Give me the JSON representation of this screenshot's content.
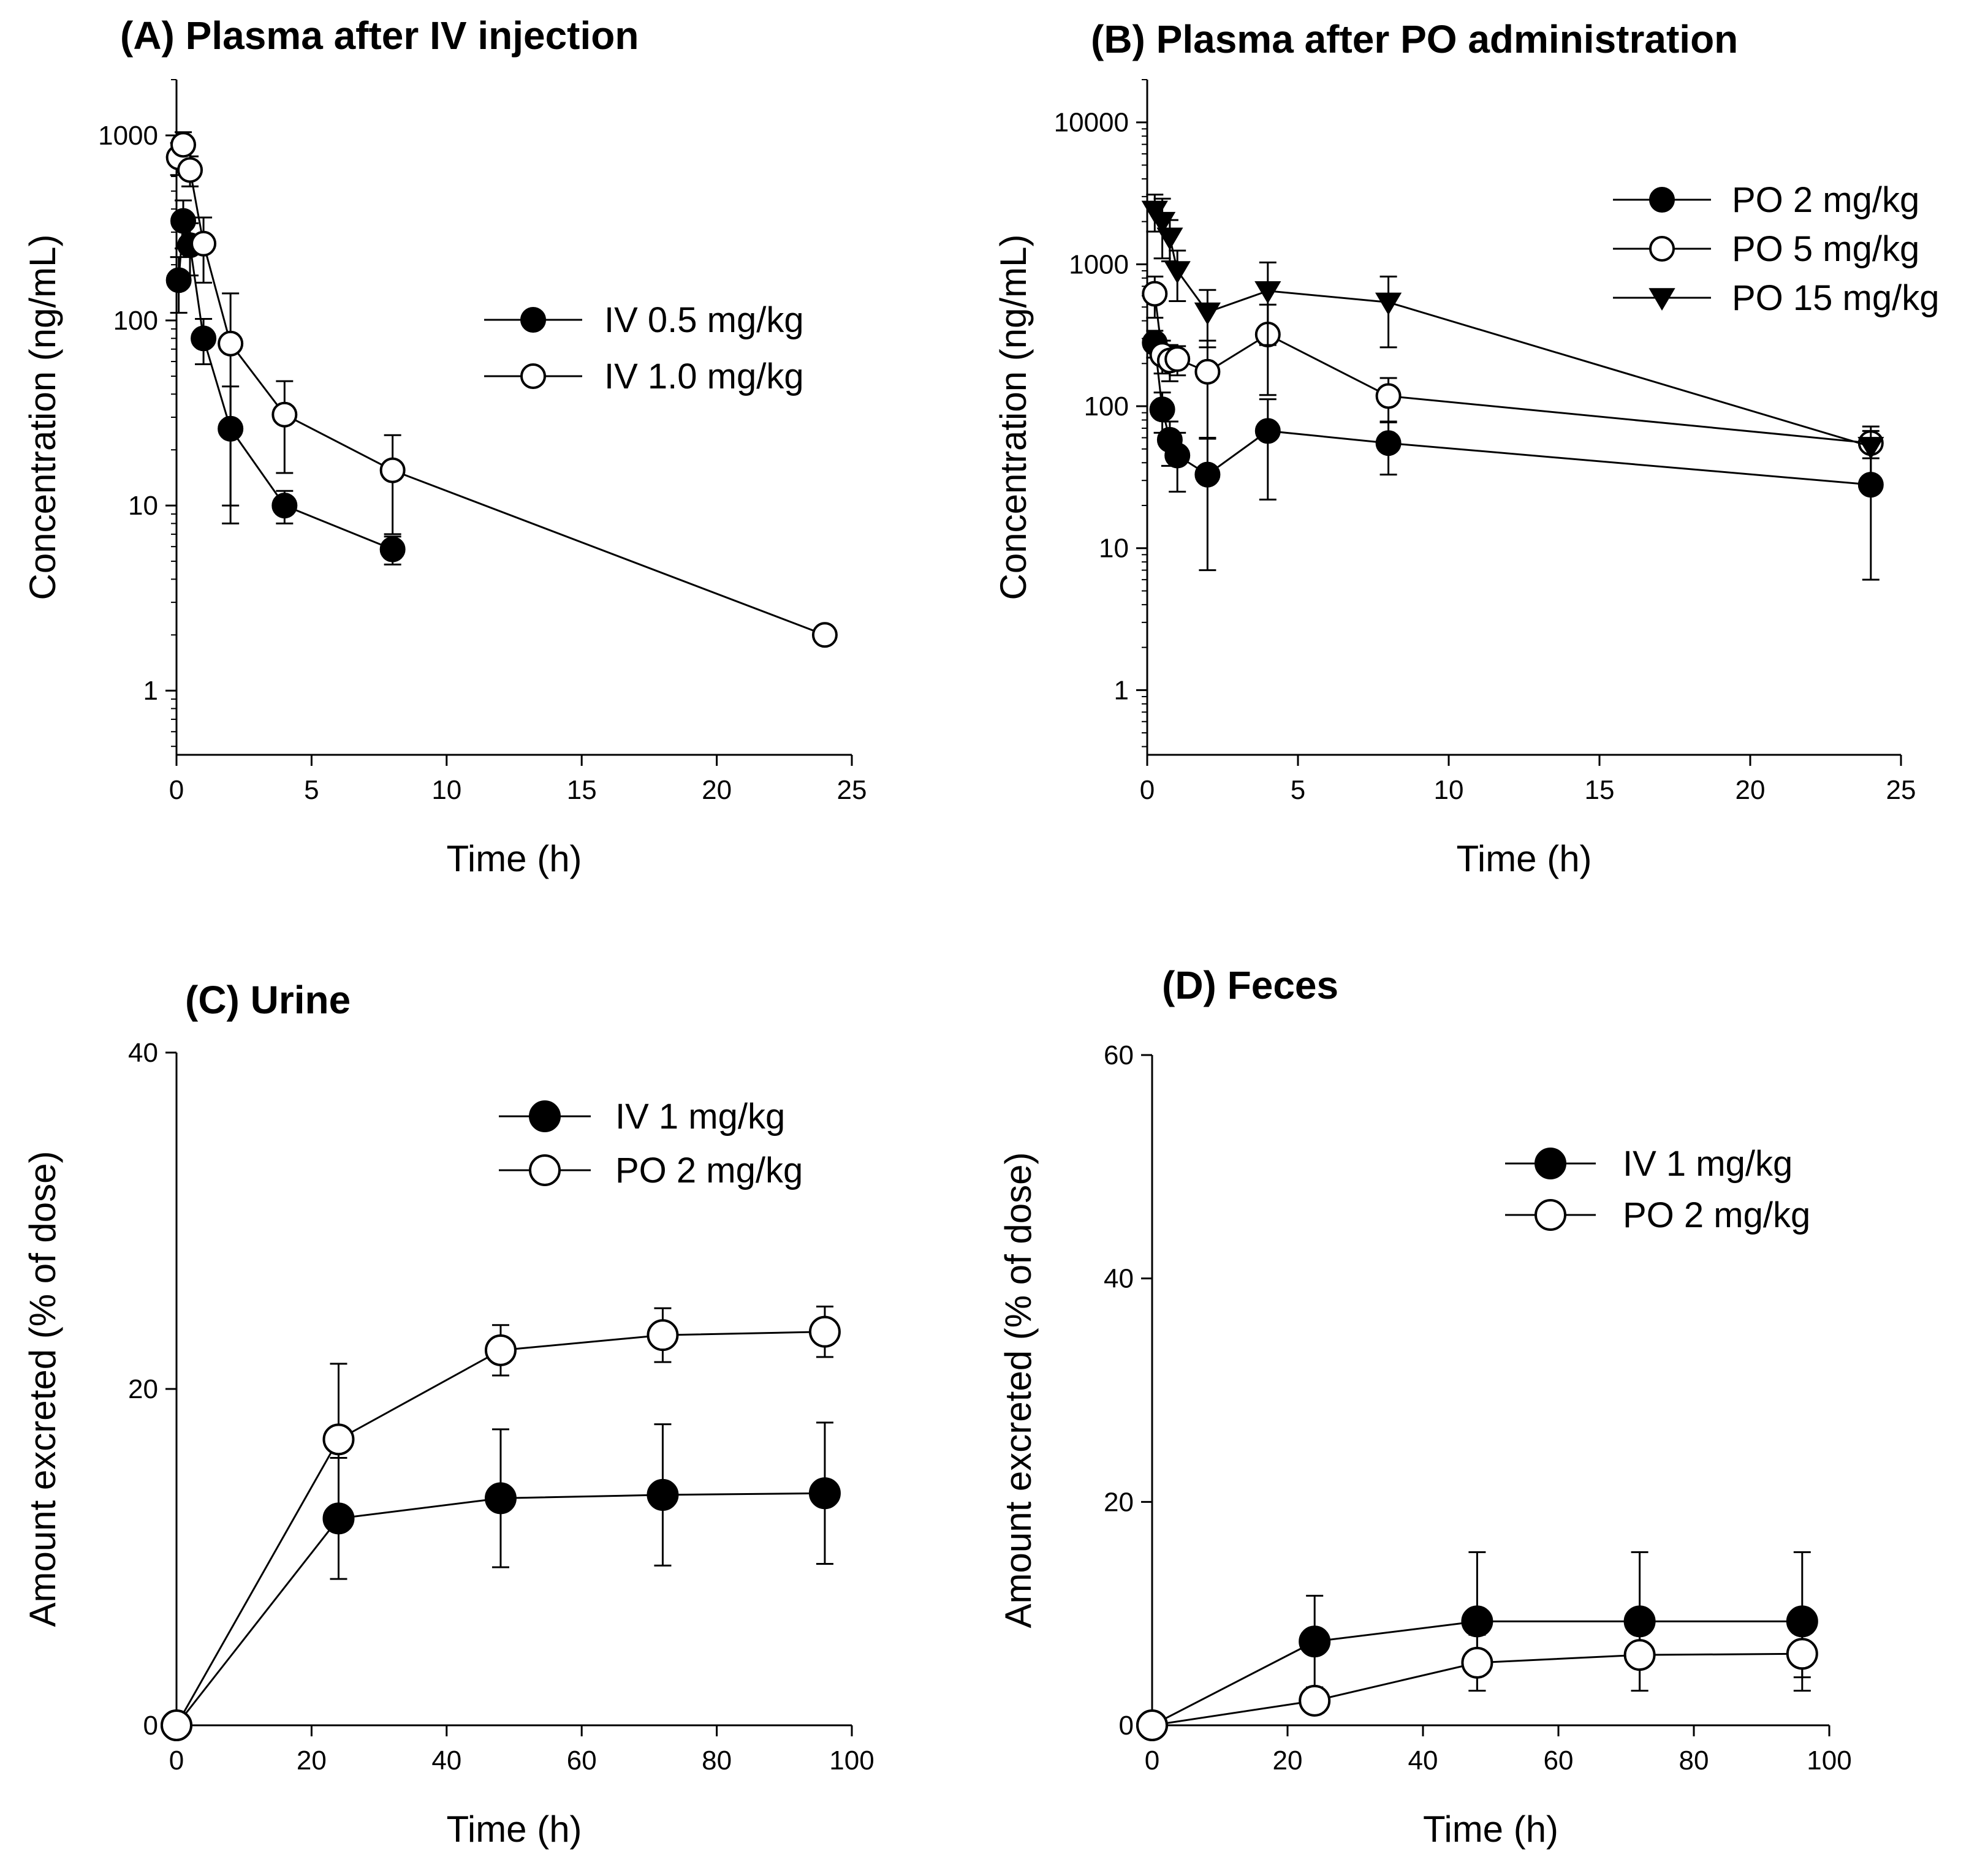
{
  "chart_data": [
    {
      "id": "A",
      "type": "scatter",
      "yscale": "log",
      "title": "(A) Plasma after IV injection",
      "xlabel": "Time (h)",
      "ylabel": "Concentration (ng/mL)",
      "xlim": [
        0,
        25
      ],
      "ylim": [
        0.45,
        2000
      ],
      "xticks": [
        0,
        5,
        10,
        15,
        20,
        25
      ],
      "yticks": [
        1,
        10,
        100,
        1000
      ],
      "xtick_labels": [
        "0",
        "5",
        "10",
        "15",
        "20",
        "25"
      ],
      "ytick_labels": [
        "1",
        "10",
        "100",
        "1000"
      ],
      "series": [
        {
          "name": "IV 0.5  mg/kg",
          "marker": "filled-circle",
          "x": [
            0.083,
            0.25,
            0.5,
            1,
            2,
            4,
            8
          ],
          "y": [
            165,
            345,
            255,
            80,
            26,
            10,
            5.8
          ],
          "err": [
            55,
            100,
            80,
            22,
            18,
            2,
            1
          ]
        },
        {
          "name": "IV 1.0 mg/kg",
          "marker": "open-circle",
          "x": [
            0.083,
            0.25,
            0.5,
            1,
            2,
            4,
            8,
            24
          ],
          "y": [
            760,
            890,
            650,
            260,
            75,
            31,
            15.5,
            2
          ],
          "err": [
            150,
            150,
            120,
            100,
            65,
            16,
            8.5,
            0
          ]
        }
      ]
    },
    {
      "id": "B",
      "type": "scatter",
      "yscale": "log",
      "title": "(B) Plasma after PO administration",
      "xlabel": "Time (h)",
      "ylabel": "Concentration (ng/mL)",
      "xlim": [
        0,
        25
      ],
      "ylim": [
        0.35,
        20000
      ],
      "xticks": [
        0,
        5,
        10,
        15,
        20,
        25
      ],
      "yticks": [
        1,
        10,
        100,
        1000,
        10000
      ],
      "xtick_labels": [
        "0",
        "5",
        "10",
        "15",
        "20",
        "25"
      ],
      "ytick_labels": [
        "1",
        "10",
        "100",
        "1000",
        "10000"
      ],
      "series": [
        {
          "name": "PO 2 mg/kg",
          "marker": "filled-circle",
          "x": [
            0.25,
            0.5,
            0.75,
            1,
            2,
            4,
            8,
            24
          ],
          "y": [
            280,
            95,
            58,
            45,
            33,
            67,
            55,
            28
          ],
          "err": [
            60,
            30,
            20,
            20,
            26,
            45,
            22,
            22
          ]
        },
        {
          "name": "PO 5 mg/kg",
          "marker": "open-circle",
          "x": [
            0.25,
            0.5,
            0.75,
            1,
            2,
            4,
            8,
            24
          ],
          "y": [
            620,
            230,
            210,
            215,
            175,
            320,
            118,
            55
          ],
          "err": [
            200,
            60,
            60,
            50,
            115,
            200,
            40,
            12
          ]
        },
        {
          "name": "PO 15 mg/kg",
          "marker": "filled-triangle-down",
          "x": [
            0.25,
            0.5,
            0.75,
            1,
            2,
            4,
            8,
            24
          ],
          "y": [
            2400,
            2000,
            1550,
            900,
            460,
            650,
            540,
            52
          ],
          "err": [
            700,
            900,
            500,
            350,
            200,
            380,
            280,
            20
          ]
        }
      ]
    },
    {
      "id": "C",
      "type": "line",
      "title": "(C) Urine",
      "xlabel": "Time (h)",
      "ylabel": "Amount excreted (% of dose)",
      "xlim": [
        0,
        100
      ],
      "ylim": [
        0,
        40
      ],
      "xticks": [
        0,
        20,
        40,
        60,
        80,
        100
      ],
      "yticks": [
        0,
        20,
        40
      ],
      "xtick_labels": [
        "0",
        "20",
        "40",
        "60",
        "80",
        "100"
      ],
      "ytick_labels": [
        "0",
        "20",
        "40"
      ],
      "series": [
        {
          "name": "IV 1 mg/kg",
          "marker": "filled-circle",
          "x": [
            0,
            24,
            48,
            72,
            96
          ],
          "y": [
            0,
            12.3,
            13.5,
            13.7,
            13.8
          ],
          "err": [
            0,
            3.6,
            4.1,
            4.2,
            4.2
          ]
        },
        {
          "name": "PO 2 mg/kg",
          "marker": "open-circle",
          "x": [
            0,
            24,
            48,
            72,
            96
          ],
          "y": [
            0,
            17,
            22.3,
            23.2,
            23.4
          ],
          "err": [
            0,
            4.5,
            1.5,
            1.6,
            1.5
          ]
        }
      ]
    },
    {
      "id": "D",
      "type": "line",
      "title": "(D) Feces",
      "xlabel": "Time (h)",
      "ylabel": "Amount excreted (% of dose)",
      "xlim": [
        0,
        100
      ],
      "ylim": [
        0,
        60
      ],
      "xticks": [
        0,
        20,
        40,
        60,
        80,
        100
      ],
      "yticks": [
        0,
        20,
        40,
        60
      ],
      "xtick_labels": [
        "0",
        "20",
        "40",
        "60",
        "80",
        "100"
      ],
      "ytick_labels": [
        "0",
        "20",
        "40",
        "60"
      ],
      "series": [
        {
          "name": "IV 1 mg/kg",
          "marker": "filled-circle",
          "x": [
            0,
            24,
            48,
            72,
            96
          ],
          "y": [
            0,
            7.5,
            9.3,
            9.3,
            9.3
          ],
          "err": [
            0,
            4.1,
            6.2,
            6.2,
            6.2
          ]
        },
        {
          "name": "PO 2 mg/kg",
          "marker": "open-circle",
          "x": [
            0,
            24,
            48,
            72,
            96
          ],
          "y": [
            0,
            2.2,
            5.6,
            6.3,
            6.4
          ],
          "err": [
            0,
            0,
            2.5,
            3.2,
            2.1
          ]
        }
      ]
    }
  ]
}
